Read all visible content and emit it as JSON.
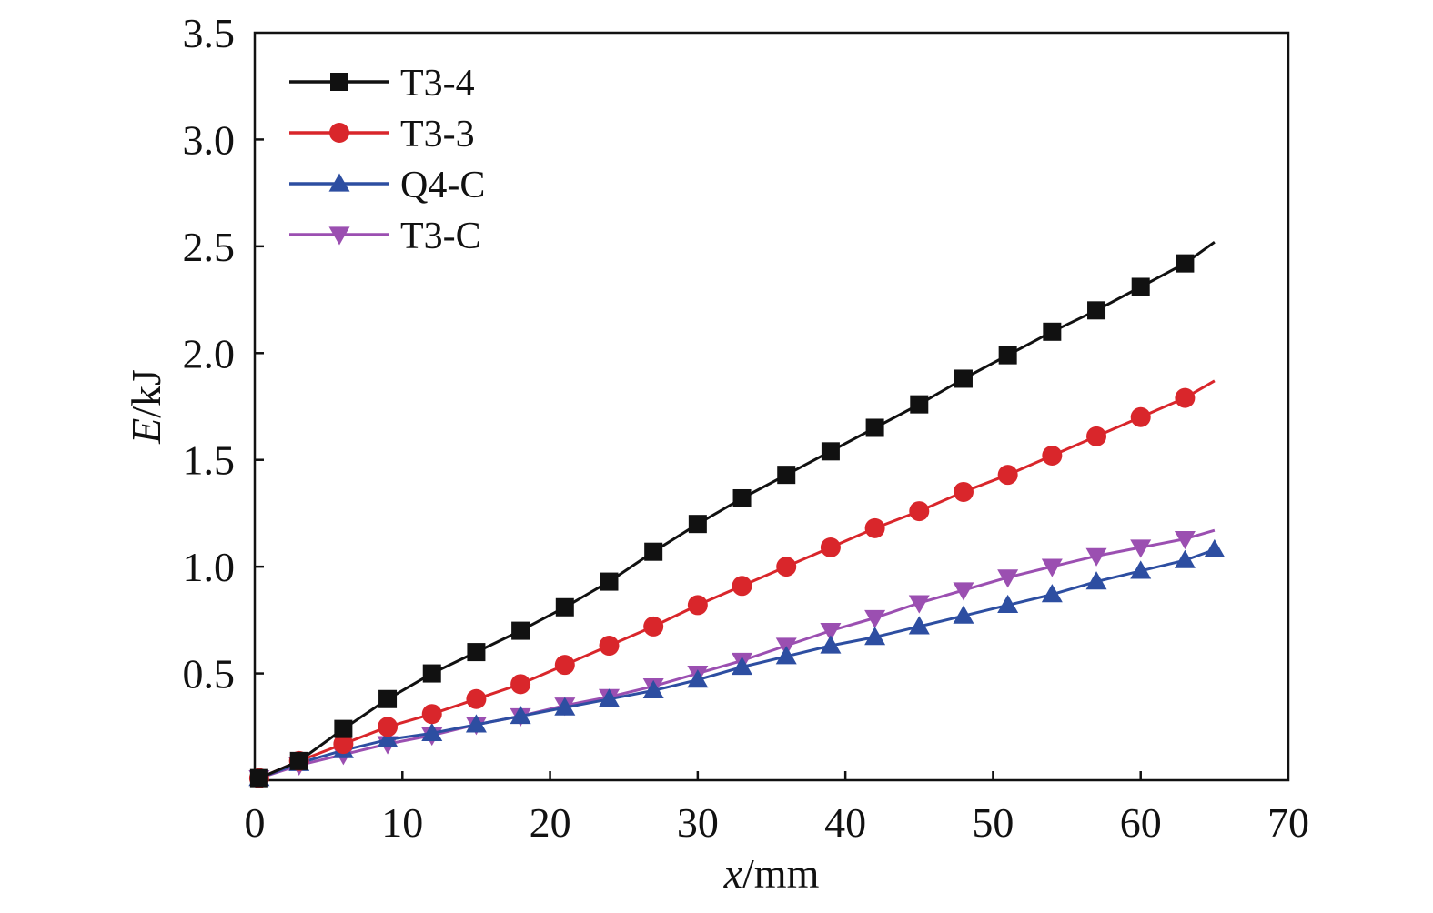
{
  "chart_data": {
    "type": "line",
    "title": "",
    "xlabel": {
      "var": "x",
      "unit": "/mm"
    },
    "ylabel": {
      "var": "E",
      "unit": "/kJ"
    },
    "xlim": [
      0,
      70
    ],
    "ylim": [
      0,
      3.5
    ],
    "x_ticks": [
      0,
      10,
      20,
      30,
      40,
      50,
      60,
      70
    ],
    "x_tick_labels": [
      "0",
      "10",
      "20",
      "30",
      "40",
      "50",
      "60",
      "70"
    ],
    "y_ticks": [
      0.5,
      1.0,
      1.5,
      2.0,
      2.5,
      3.0,
      3.5
    ],
    "y_tick_labels": [
      "0.5",
      "1.0",
      "1.5",
      "2.0",
      "2.5",
      "3.0",
      "3.5"
    ],
    "grid": false,
    "legend_position": "top-left",
    "series": [
      {
        "name": "T3-4",
        "color": "#111111",
        "marker": "square",
        "x": [
          0.3,
          3,
          6,
          9,
          12,
          15,
          18,
          21,
          24,
          27,
          30,
          33,
          36,
          39,
          42,
          45,
          48,
          51,
          54,
          57,
          60,
          63,
          65
        ],
        "y": [
          0.01,
          0.09,
          0.24,
          0.38,
          0.5,
          0.6,
          0.7,
          0.81,
          0.93,
          1.07,
          1.2,
          1.32,
          1.43,
          1.54,
          1.65,
          1.76,
          1.88,
          1.99,
          2.1,
          2.2,
          2.31,
          2.42,
          2.52
        ],
        "markers_until_index": 21
      },
      {
        "name": "T3-3",
        "color": "#d9262b",
        "marker": "circle",
        "x": [
          0.3,
          3,
          6,
          9,
          12,
          15,
          18,
          21,
          24,
          27,
          30,
          33,
          36,
          39,
          42,
          45,
          48,
          51,
          54,
          57,
          60,
          63,
          65
        ],
        "y": [
          0.01,
          0.09,
          0.17,
          0.25,
          0.31,
          0.38,
          0.45,
          0.54,
          0.63,
          0.72,
          0.82,
          0.91,
          1.0,
          1.09,
          1.18,
          1.26,
          1.35,
          1.43,
          1.52,
          1.61,
          1.7,
          1.79,
          1.87
        ],
        "markers_until_index": 21
      },
      {
        "name": "Q4-C",
        "color": "#2d4ea1",
        "marker": "triangle-up",
        "x": [
          0.3,
          3,
          6,
          9,
          12,
          15,
          18,
          21,
          24,
          27,
          30,
          33,
          36,
          39,
          42,
          45,
          48,
          51,
          54,
          57,
          60,
          63,
          65
        ],
        "y": [
          0.01,
          0.08,
          0.14,
          0.19,
          0.22,
          0.26,
          0.3,
          0.34,
          0.38,
          0.42,
          0.47,
          0.53,
          0.58,
          0.63,
          0.67,
          0.72,
          0.77,
          0.82,
          0.87,
          0.93,
          0.98,
          1.03,
          1.08
        ],
        "markers_until_index": 22
      },
      {
        "name": "T3-C",
        "color": "#9b4fb1",
        "marker": "triangle-down",
        "x": [
          0.3,
          3,
          6,
          9,
          12,
          15,
          18,
          21,
          24,
          27,
          30,
          33,
          36,
          39,
          42,
          45,
          48,
          51,
          54,
          57,
          60,
          63,
          65
        ],
        "y": [
          0.01,
          0.07,
          0.12,
          0.17,
          0.21,
          0.26,
          0.3,
          0.35,
          0.39,
          0.44,
          0.5,
          0.56,
          0.63,
          0.7,
          0.76,
          0.83,
          0.89,
          0.95,
          1.0,
          1.05,
          1.09,
          1.13,
          1.17
        ],
        "markers_until_index": 21
      }
    ]
  }
}
